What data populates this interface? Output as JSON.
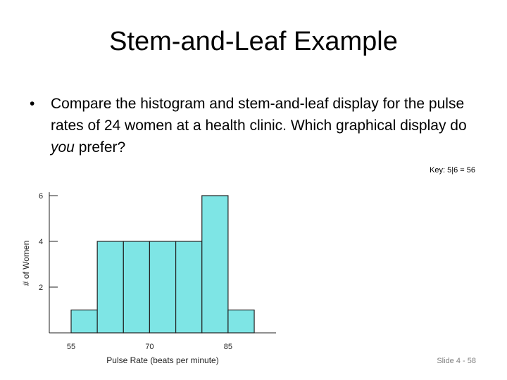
{
  "slide": {
    "title": "Stem-and-Leaf Example",
    "bullet": {
      "symbol": "•",
      "text_before": "Compare the histogram and stem-and-leaf display for the pulse rates of 24 women at a health clinic. Which graphical display do ",
      "emphasis": "you",
      "text_after": " prefer?"
    },
    "key": "Key: 5|6 = 56",
    "slide_number": "Slide 4 - 58"
  },
  "chart_data": {
    "type": "bar",
    "title": "",
    "xlabel": "Pulse Rate (beats per minute)",
    "ylabel": "# of Women",
    "x_ticks": [
      "55",
      "70",
      "85"
    ],
    "y_ticks": [
      "2",
      "4",
      "6"
    ],
    "bins": [
      {
        "start": 55,
        "end": 60,
        "count": 1
      },
      {
        "start": 60,
        "end": 65,
        "count": 4
      },
      {
        "start": 65,
        "end": 70,
        "count": 4
      },
      {
        "start": 70,
        "end": 75,
        "count": 4
      },
      {
        "start": 75,
        "end": 80,
        "count": 4
      },
      {
        "start": 80,
        "end": 85,
        "count": 6
      },
      {
        "start": 85,
        "end": 90,
        "count": 1
      }
    ],
    "xlim": [
      50,
      90
    ],
    "ylim": [
      0,
      6
    ],
    "bar_color": "#7ee5e5",
    "grid": false
  }
}
